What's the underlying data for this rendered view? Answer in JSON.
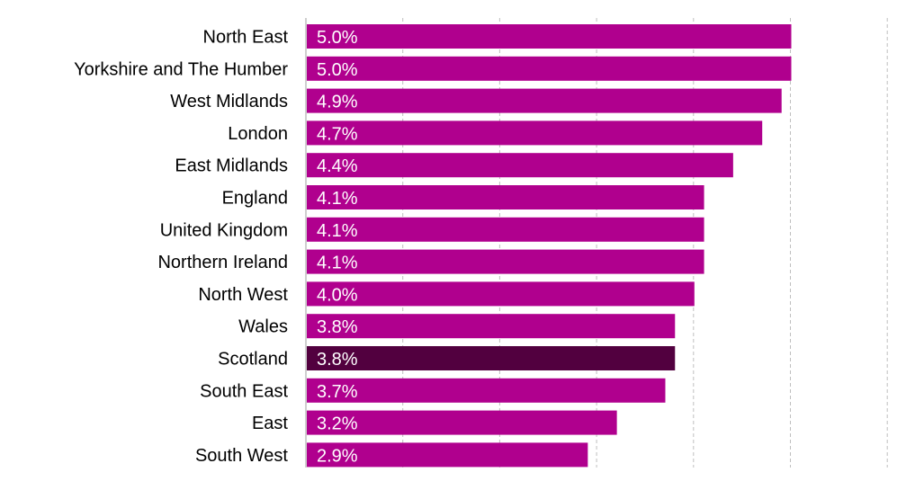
{
  "chart_data": {
    "type": "bar",
    "orientation": "horizontal",
    "categories": [
      "North East",
      "Yorkshire and The Humber",
      "West Midlands",
      "London",
      "East Midlands",
      "England",
      "United Kingdom",
      "Northern Ireland",
      "North West",
      "Wales",
      "Scotland",
      "South East",
      "East",
      "South West"
    ],
    "values": [
      5.0,
      5.0,
      4.9,
      4.7,
      4.4,
      4.1,
      4.1,
      4.1,
      4.0,
      3.8,
      3.8,
      3.7,
      3.2,
      2.9
    ],
    "value_labels": [
      "5.0%",
      "5.0%",
      "4.9%",
      "4.7%",
      "4.4%",
      "4.1%",
      "4.1%",
      "4.1%",
      "4.0%",
      "3.8%",
      "3.8%",
      "3.7%",
      "3.2%",
      "2.9%"
    ],
    "highlight": "Scotland",
    "bar_color": "#B0008E",
    "highlight_color": "#52003F",
    "grid_color": "#BFBFBF",
    "xlim": [
      0,
      6
    ],
    "grid": true,
    "legend": "none"
  }
}
